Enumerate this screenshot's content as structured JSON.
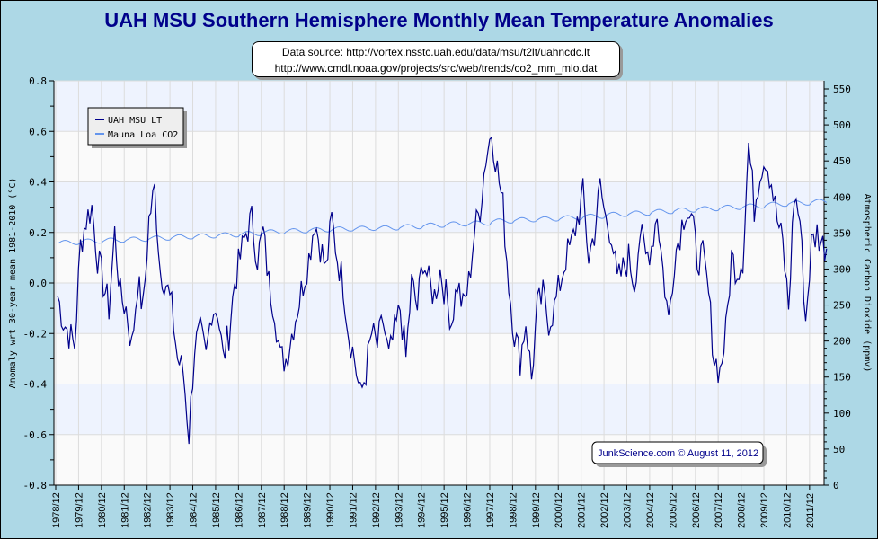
{
  "chart_data": {
    "type": "line",
    "title": "UAH MSU Southern Hemisphere Monthly Mean Temperature Anomalies",
    "source_lines": [
      "Data source: http://vortex.nsstc.uah.edu/data/msu/t2lt/uahncdc.lt",
      "http://www.cmdl.noaa.gov/projects/src/web/trends/co2_mm_mlo.dat"
    ],
    "credit": "JunkScience.com © August 11, 2012",
    "ylabel": "Anomaly wrt 30-year mean 1981-2010 (°C)",
    "y2label": "Atmospheric Carbon Dioxide (ppmv)",
    "ylim": [
      -0.8,
      0.8
    ],
    "yticks": [
      "0.8",
      "0.6",
      "0.4",
      "0.2",
      "0.0",
      "-0.2",
      "-0.4",
      "-0.6",
      "-0.8"
    ],
    "y2lim": [
      0,
      550
    ],
    "y2ticks": [
      "0",
      "50",
      "100",
      "150",
      "200",
      "250",
      "300",
      "350",
      "400",
      "450",
      "500",
      "550"
    ],
    "xticks": [
      "1978/12",
      "1979/12",
      "1980/12",
      "1981/12",
      "1982/12",
      "1983/12",
      "1984/12",
      "1985/12",
      "1986/12",
      "1987/12",
      "1988/12",
      "1989/12",
      "1990/12",
      "1991/12",
      "1992/12",
      "1993/12",
      "1994/12",
      "1995/12",
      "1996/12",
      "1997/12",
      "1998/12",
      "1999/12",
      "2000/12",
      "2001/12",
      "2002/12",
      "2003/12",
      "2004/12",
      "2005/12",
      "2006/12",
      "2007/12",
      "2008/12",
      "2009/12",
      "2010/12",
      "2011/12"
    ],
    "grid": true,
    "legend_position": "top-left",
    "series": [
      {
        "name": "UAH MSU LT",
        "axis": "left",
        "color": "#00008b",
        "start_year": 1979.0,
        "step_years": 0.25,
        "values": [
          -0.05,
          -0.15,
          -0.2,
          -0.25,
          0.15,
          0.25,
          0.3,
          0.1,
          0.0,
          -0.1,
          0.2,
          -0.05,
          -0.1,
          -0.25,
          0.0,
          -0.1,
          0.25,
          0.37,
          0.05,
          0.0,
          -0.1,
          -0.3,
          -0.35,
          -0.6,
          -0.25,
          -0.2,
          -0.3,
          -0.1,
          -0.1,
          -0.3,
          -0.2,
          0.0,
          0.1,
          0.2,
          0.25,
          0.1,
          0.2,
          0.0,
          -0.1,
          -0.3,
          -0.3,
          -0.2,
          -0.1,
          0.0,
          0.1,
          0.25,
          0.15,
          0.05,
          0.25,
          0.1,
          0.0,
          -0.2,
          -0.3,
          -0.45,
          -0.35,
          -0.2,
          -0.25,
          -0.15,
          -0.3,
          -0.2,
          -0.1,
          -0.3,
          0.0,
          -0.1,
          0.1,
          0.0,
          -0.05,
          0.05,
          -0.05,
          -0.15,
          0.0,
          -0.1,
          0.0,
          0.2,
          0.3,
          0.5,
          0.6,
          0.45,
          0.3,
          0.0,
          -0.2,
          -0.3,
          -0.15,
          -0.38,
          -0.1,
          -0.05,
          -0.15,
          -0.1,
          0.0,
          0.1,
          0.15,
          0.25,
          0.35,
          0.1,
          0.2,
          0.38,
          0.25,
          0.2,
          0.0,
          0.05,
          0.1,
          0.0,
          0.2,
          0.1,
          0.15,
          0.28,
          0.05,
          -0.15,
          0.1,
          0.2,
          0.3,
          0.25,
          0.1,
          0.1,
          -0.05,
          -0.3,
          -0.35,
          -0.2,
          0.1,
          0.05,
          0.1,
          0.55,
          0.3,
          0.45,
          0.5,
          0.4,
          0.25,
          0.15,
          -0.1,
          0.35,
          0.25,
          -0.15,
          0.15,
          0.2,
          0.15
        ]
      },
      {
        "name": "Mauna Loa CO2",
        "axis": "right",
        "color": "#6495ed",
        "start_year": 1979,
        "seasonal_amplitude": 3,
        "annual_means": [
          336.8,
          338.7,
          340.1,
          341.4,
          343.0,
          344.6,
          346.0,
          347.4,
          349.2,
          351.6,
          353.1,
          354.4,
          355.6,
          356.5,
          357.1,
          358.8,
          360.8,
          362.6,
          363.7,
          366.7,
          368.4,
          369.6,
          371.1,
          373.2,
          375.8,
          377.5,
          379.8,
          381.9,
          383.8,
          385.6,
          387.4,
          389.9,
          391.6,
          393.8
        ]
      }
    ]
  }
}
